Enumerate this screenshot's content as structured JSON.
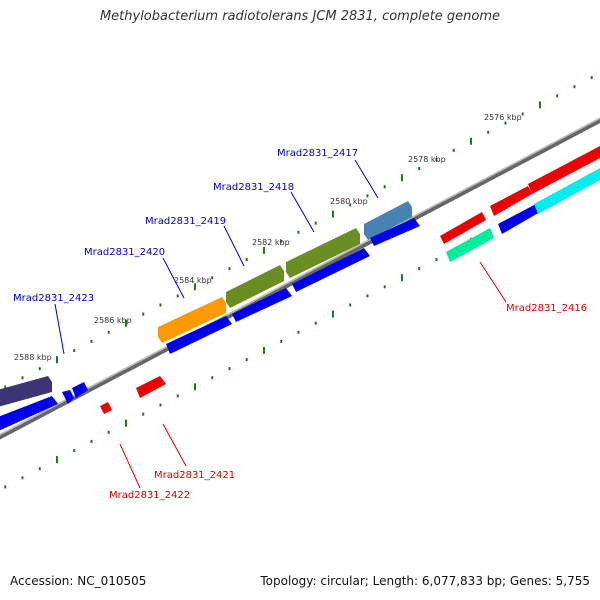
{
  "title": "Methylobacterium radiotolerans JCM 2831, complete genome",
  "footer": {
    "accession": "Accession: NC_010505",
    "summary": "Topology: circular; Length: 6,077,833 bp; Genes: 5,755"
  },
  "colors": {
    "backbone": "#888888",
    "tick": "#1a7a1a",
    "forward_label": "#0000cc",
    "reverse_label": "#dd0000"
  },
  "kbp_labels": [
    "2576 kbp",
    "2578 kbp",
    "2580 kbp",
    "2582 kbp",
    "2584 kbp",
    "2586 kbp",
    "2588 kbp"
  ],
  "gene_labels": {
    "forward": [
      "Mrad2831_2417",
      "Mrad2831_2418",
      "Mrad2831_2419",
      "Mrad2831_2420",
      "Mrad2831_2423"
    ],
    "reverse": [
      "Mrad2831_2416",
      "Mrad2831_2421",
      "Mrad2831_2422"
    ]
  }
}
